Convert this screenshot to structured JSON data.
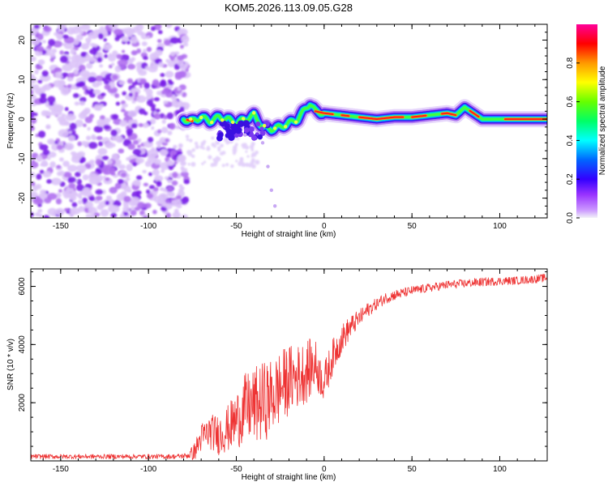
{
  "title": "KOM5.2026.113.09.05.G28",
  "chart_data": [
    {
      "type": "heatmap",
      "xlabel": "Height of straight line (km)",
      "ylabel": "Frequency (Hz)",
      "xlim": [
        -167,
        127
      ],
      "ylim": [
        -25,
        24
      ],
      "xticks": [
        -150,
        -100,
        -50,
        0,
        50,
        100
      ],
      "xtick_labels": [
        "-150",
        "-100",
        "-50",
        "0",
        "50",
        "100"
      ],
      "yticks": [
        -20,
        -10,
        0,
        10,
        20
      ],
      "ytick_labels": [
        "-20",
        "-10",
        "0",
        "10",
        "20"
      ],
      "noise_region_x": [
        -167,
        -78
      ],
      "ridge_x": [
        -80,
        -75,
        -70,
        -65,
        -60,
        -55,
        -50,
        -45,
        -40,
        -35,
        -30,
        -25,
        -20,
        -15,
        -10,
        -8,
        -5,
        0,
        10,
        20,
        30,
        40,
        50,
        60,
        70,
        75,
        80,
        85,
        90,
        95,
        100,
        110,
        127
      ],
      "ridge_freq": [
        0.0,
        -0.5,
        0.5,
        -0.5,
        0.5,
        0.0,
        -1.0,
        0.0,
        1.0,
        -2.0,
        -2.5,
        -2.0,
        -1.0,
        0.0,
        3.0,
        4.0,
        2.0,
        1.5,
        1.0,
        0.5,
        0.0,
        0.5,
        0.5,
        1.0,
        1.5,
        1.0,
        3.0,
        1.5,
        0.0,
        0.0,
        0.0,
        0.0,
        0.0
      ],
      "stray_points": [
        {
          "x": -35,
          "freq": -6
        },
        {
          "x": -32,
          "freq": -12
        },
        {
          "x": -30,
          "freq": -18
        },
        {
          "x": -28,
          "freq": -22
        },
        {
          "x": -45,
          "freq": -4
        }
      ],
      "colorbar": {
        "label": "Normalized spectral amplitude",
        "range": [
          0,
          1
        ],
        "ticks": [
          0.0,
          0.2,
          0.4,
          0.6,
          0.8
        ],
        "tick_labels": [
          "0.0",
          "0.2",
          "0.4",
          "0.6",
          "0.8"
        ]
      }
    },
    {
      "type": "line",
      "xlabel": "Height of straight line (km)",
      "ylabel": "SNR (10 * v/v)",
      "xlim": [
        -167,
        127
      ],
      "ylim": [
        0,
        6600
      ],
      "xticks": [
        -150,
        -100,
        -50,
        0,
        50,
        100
      ],
      "xtick_labels": [
        "-150",
        "-100",
        "-50",
        "0",
        "50",
        "100"
      ],
      "yticks": [
        2000,
        4000,
        6000
      ],
      "ytick_labels": [
        "2000",
        "4000",
        "6000"
      ],
      "color": "#ee3333",
      "series": [
        {
          "name": "SNR",
          "x": [
            -167,
            -150,
            -125,
            -100,
            -85,
            -78,
            -74,
            -70,
            -65,
            -60,
            -55,
            -50,
            -45,
            -40,
            -35,
            -30,
            -25,
            -20,
            -15,
            -10,
            -5,
            -2,
            0,
            5,
            10,
            15,
            20,
            25,
            30,
            35,
            40,
            50,
            60,
            70,
            80,
            90,
            100,
            110,
            120,
            127
          ],
          "y": [
            150,
            150,
            150,
            150,
            150,
            180,
            300,
            800,
            1000,
            900,
            1100,
            1400,
            1800,
            1900,
            2000,
            2200,
            2500,
            2800,
            2900,
            3100,
            3300,
            2900,
            2700,
            3600,
            4200,
            4600,
            4900,
            5200,
            5400,
            5600,
            5700,
            5850,
            5950,
            6050,
            6100,
            6150,
            6180,
            6200,
            6250,
            6300
          ],
          "noise_amplitude": [
            80,
            80,
            80,
            80,
            80,
            100,
            300,
            500,
            600,
            700,
            800,
            1000,
            1200,
            1300,
            1400,
            1300,
            1300,
            1200,
            1100,
            1100,
            900,
            700,
            700,
            600,
            500,
            400,
            300,
            250,
            200,
            200,
            180,
            160,
            150,
            150,
            150,
            150,
            140,
            140,
            140,
            140
          ]
        }
      ]
    }
  ]
}
